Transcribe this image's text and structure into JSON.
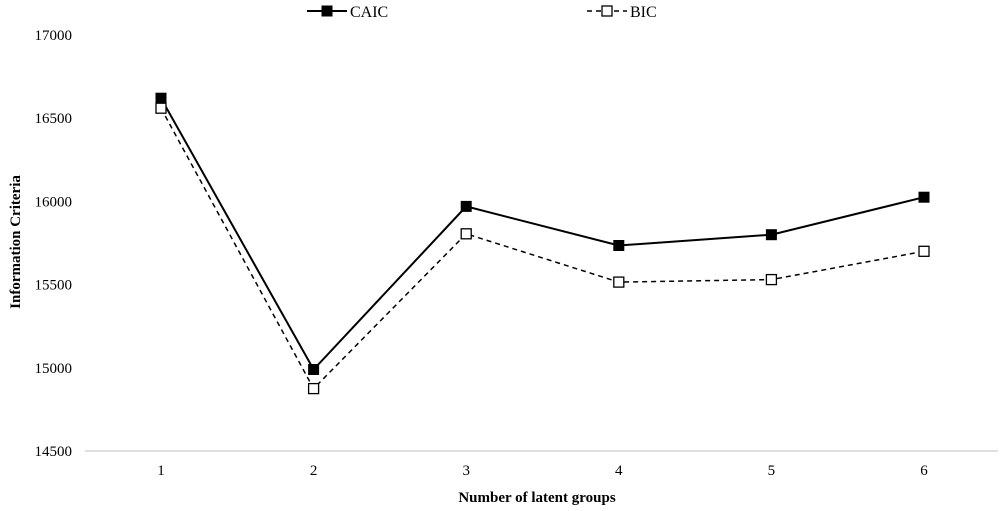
{
  "chart_data": {
    "type": "line",
    "title": "",
    "xlabel": "Number  of latent groups",
    "ylabel": "Information  Criteria",
    "x": [
      "1",
      "2",
      "3",
      "4",
      "5",
      "6"
    ],
    "ylim": [
      14500,
      17000
    ],
    "yticks": [
      "14500",
      "15000",
      "15500",
      "16000",
      "16500",
      "17000"
    ],
    "grid": false,
    "legend_position": "top-center",
    "series": [
      {
        "name": "CAIC",
        "values": [
          16620,
          14990,
          15970,
          15735,
          15800,
          16025
        ],
        "line_style": "solid",
        "marker": "filled-square",
        "color": "#000000"
      },
      {
        "name": "BIC",
        "values": [
          16560,
          14875,
          15805,
          15515,
          15530,
          15700
        ],
        "line_style": "dashed",
        "marker": "open-square",
        "color": "#000000"
      }
    ]
  }
}
